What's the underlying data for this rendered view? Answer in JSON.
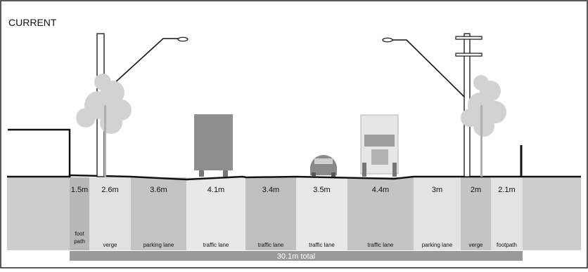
{
  "title": "CURRENT",
  "total_label": "30.1m total",
  "lanes": [
    {
      "width": "1.5m",
      "name": "foot path",
      "name_lines": [
        "foot",
        "path"
      ],
      "fill": "#b8b8b8"
    },
    {
      "width": "2.6m",
      "name": "verge",
      "name_lines": [
        "verge"
      ],
      "fill": "#e1e1e1"
    },
    {
      "width": "3.6m",
      "name": "parking lane",
      "name_lines": [
        "parking lane"
      ],
      "fill": "#c4c4c4"
    },
    {
      "width": "4.1m",
      "name": "traffic lane",
      "name_lines": [
        "traffic lane"
      ],
      "fill": "#e8e8e8"
    },
    {
      "width": "3.4m",
      "name": "traffic lane",
      "name_lines": [
        "traffic lane"
      ],
      "fill": "#bfbfbf"
    },
    {
      "width": "3.5m",
      "name": "traffic lane",
      "name_lines": [
        "traffic lane"
      ],
      "fill": "#e8e8e8"
    },
    {
      "width": "4.4m",
      "name": "traffic lane",
      "name_lines": [
        "traffic lane"
      ],
      "fill": "#c4c4c4"
    },
    {
      "width": "3m",
      "name": "parking lane",
      "name_lines": [
        "parking lane"
      ],
      "fill": "#e3e3e3"
    },
    {
      "width": "2m",
      "name": "verge",
      "name_lines": [
        "verge"
      ],
      "fill": "#c4c4c4"
    },
    {
      "width": "2.1m",
      "name": "footpath",
      "name_lines": [
        "footpath"
      ],
      "fill": "#e3e3e3"
    }
  ],
  "colors": {
    "ground_side": "#cdcdcd",
    "total_bar": "#9a9a9a",
    "tree": "#d2d2d2",
    "vehicle_dark": "#8f8f8f",
    "vehicle_light": "#e6e6e6",
    "outline": "#111111"
  },
  "icons": [
    "street-light-icon",
    "tree-icon",
    "truck-icon",
    "car-icon",
    "utility-pole-icon",
    "building-outline"
  ]
}
